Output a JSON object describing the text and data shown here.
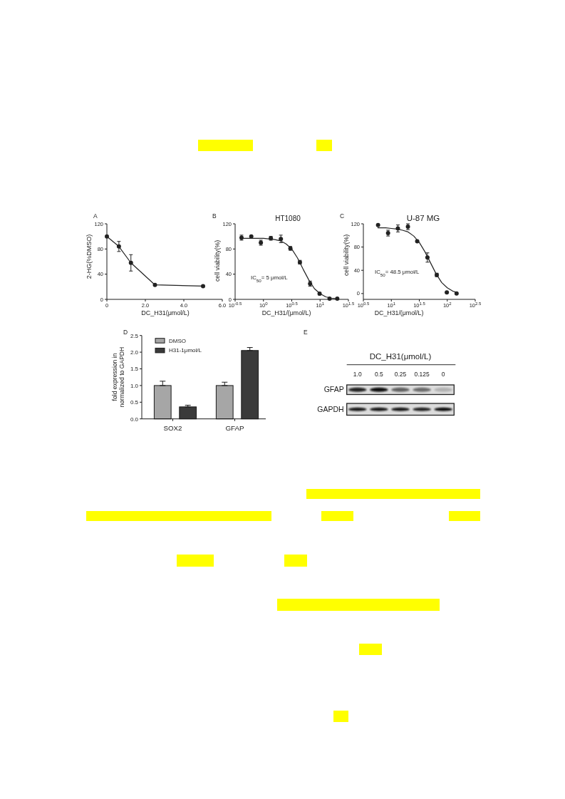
{
  "chart_data": [
    {
      "type": "line",
      "annotations": [
        "A"
      ],
      "xlabel": "DC_H31(μmol/L)",
      "ylabel": "2-HG(%DMSO)",
      "x": [
        0,
        0.625,
        1.25,
        2.5,
        5
      ],
      "values": [
        100,
        84,
        58,
        23,
        21
      ],
      "errors": [
        null,
        8,
        13,
        null,
        null
      ],
      "color": "#222222",
      "marker": "circle",
      "xlim": [
        0,
        6
      ],
      "ylim": [
        0,
        120
      ],
      "xticks": [
        0,
        {
          "value": 2,
          "label": "2.0"
        },
        {
          "value": 4,
          "label": "4.0"
        },
        {
          "value": 6,
          "label": "6.0"
        }
      ],
      "yticks": [
        0,
        40,
        80,
        120
      ]
    },
    {
      "type": "scatter",
      "title": "HT1080",
      "annotations": [
        "B",
        "IC$_{50}$= 5 μmol/L"
      ],
      "xlabel": "DC_H31/(μmol/L)",
      "ylabel": "cell viability(%)",
      "log": "x",
      "marker": "circle",
      "xlim": [
        0.3162,
        31.62
      ],
      "ylim": [
        0,
        120
      ],
      "xticks": [
        {
          "value": 0.3162,
          "label": "10$^{-0.5}$"
        },
        {
          "value": 1,
          "label": "10$^{0}$"
        },
        {
          "value": 3.162,
          "label": "10$^{0.5}$"
        },
        {
          "value": 10,
          "label": "10$^{1}$"
        },
        {
          "value": 31.62,
          "label": "10$^{1.5}$"
        }
      ],
      "yticks": [
        0,
        40,
        80,
        120
      ],
      "series": [
        {
          "color": "#222222",
          "x": [
            0.41,
            0.61,
            0.9,
            1.35,
            2.03,
            2.99,
            4.4,
            6.66,
            9.8,
            14.7,
            20.1
          ],
          "values": [
            98,
            100,
            90,
            97,
            96,
            81,
            59,
            25,
            9,
            1,
            1
          ],
          "errors": [
            4,
            null,
            4,
            3,
            6,
            3,
            3,
            4,
            2,
            null,
            null
          ]
        },
        {
          "type": "line",
          "marker": "none",
          "color": "#222222",
          "x": [
            0.41,
            0.631,
            1,
            1.585,
            1.995,
            2.512,
            3.162,
            3.981,
            5.012,
            6.31,
            7.943,
            10,
            12.59,
            15.85,
            19.95,
            21
          ],
          "values": [
            97,
            97,
            97,
            95,
            93,
            88,
            80,
            66,
            48,
            31,
            17,
            9,
            4,
            2,
            1,
            1
          ]
        }
      ]
    },
    {
      "type": "scatter",
      "title": "U-87 MG",
      "annotations": [
        "C",
        "IC$_{50}$= 48.5 μmol/L"
      ],
      "xlabel": "DC_H31/(μmol/L)",
      "ylabel": "cell viability(%)",
      "log": "x",
      "marker": "circle",
      "xlim": [
        3.162,
        316.2
      ],
      "ylim": [
        -10,
        120
      ],
      "xticks": [
        {
          "value": 3.162,
          "label": "10$^{0.5}$"
        },
        {
          "value": 10,
          "label": "10$^{1}$"
        },
        {
          "value": 31.62,
          "label": "10$^{1.5}$"
        },
        {
          "value": 100,
          "label": "10$^{2}$"
        },
        {
          "value": 316.2,
          "label": "10$^{2.5}$"
        }
      ],
      "yticks": [
        0,
        40,
        80,
        120
      ],
      "series": [
        {
          "color": "#222222",
          "x": [
            5.79,
            8.74,
            13.1,
            19.8,
            29,
            44.2,
            64.9,
            98.1,
            146.8
          ],
          "values": [
            118,
            104,
            112,
            115,
            90,
            62,
            32,
            2,
            0
          ],
          "errors": [
            null,
            5,
            6,
            5,
            null,
            8,
            3,
            null,
            null
          ]
        },
        {
          "type": "line",
          "marker": "none",
          "color": "#222222",
          "x": [
            5.754,
            7.943,
            10,
            12.59,
            15.85,
            19.95,
            25.12,
            31.62,
            39.81,
            50.12,
            63.1,
            79.43,
            100,
            125.9,
            151.4
          ],
          "values": [
            113,
            113,
            112,
            111,
            109,
            106,
            99,
            88,
            72,
            53,
            34,
            19,
            10,
            4,
            2
          ]
        }
      ]
    },
    {
      "type": "bar",
      "annotations": [
        "D"
      ],
      "ylabel": "fold expression in\nnormalized to GAPDH",
      "categories": [
        "SOX2",
        "GFAP"
      ],
      "legend": "top left",
      "ylim": [
        0,
        2.5
      ],
      "yticks": [
        {
          "value": 0,
          "label": "0.0"
        },
        {
          "value": 0.5,
          "label": "0.5"
        },
        {
          "value": 1,
          "label": "1.0"
        },
        {
          "value": 1.5,
          "label": "1.5"
        },
        {
          "value": 2,
          "label": "2.0"
        },
        {
          "value": 2.5,
          "label": "2.5"
        }
      ],
      "series": [
        {
          "name": "DMSO",
          "color": "#a6a6a6",
          "values": [
            1.0,
            1.0
          ],
          "errors": [
            [
              1.0,
              1.13
            ],
            [
              1.0,
              1.1
            ]
          ]
        },
        {
          "name": "H31-1μmol/L",
          "color": "#3a3a3a",
          "values": [
            0.36,
            2.05
          ],
          "errors": [
            [
              0.36,
              0.41
            ],
            [
              2.05,
              2.14
            ]
          ]
        }
      ]
    },
    {
      "type": "other",
      "annotations": [
        "E"
      ],
      "title": "DC_H31(μmol/L)",
      "categories": [
        "1.0",
        "0.5",
        "0.25",
        "0.125",
        "0"
      ],
      "y_categories": [
        "GFAP",
        "GAPDH"
      ]
    }
  ]
}
